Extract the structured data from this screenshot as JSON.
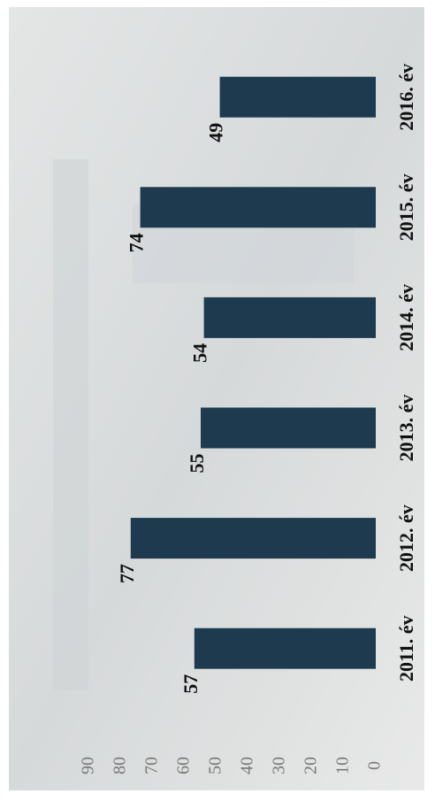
{
  "chart_data": {
    "type": "bar",
    "categories": [
      "2011. év",
      "2012. év",
      "2013. év",
      "2014. év",
      "2015. év",
      "2016. év"
    ],
    "values": [
      57,
      77,
      55,
      54,
      74,
      49
    ],
    "color": "#1d3a4f",
    "ylim": [
      0,
      90
    ],
    "yticks": [
      0,
      10,
      20,
      30,
      40,
      50,
      60,
      70,
      80,
      90
    ],
    "grid": false
  }
}
